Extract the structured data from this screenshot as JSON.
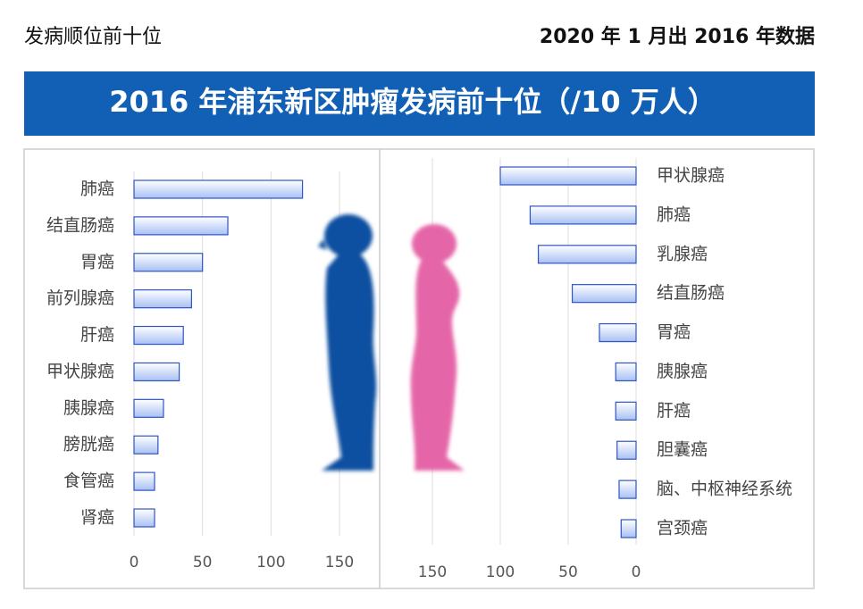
{
  "header": {
    "left": "发病顺位前十位",
    "right": "2020 年 1 月出 2016 年数据",
    "title": "2016 年浦东新区肿瘤发病前十位（/10 万人）"
  },
  "chart_data": [
    {
      "type": "bar",
      "orientation": "horizontal",
      "color": "#a8c0f4",
      "grid": true,
      "categories": [
        "肺癌",
        "结直肠癌",
        "胃癌",
        "前列腺癌",
        "肝癌",
        "甲状腺癌",
        "胰腺癌",
        "膀胱癌",
        "食管癌",
        "肾癌"
      ],
      "values": [
        123,
        68.5,
        50,
        42,
        36,
        33,
        21.5,
        17.5,
        15,
        15
      ],
      "xlim": [
        0,
        150
      ],
      "xticks": [
        0,
        50,
        100,
        150
      ]
    },
    {
      "type": "bar",
      "orientation": "horizontal",
      "color": "#a8c0f4",
      "grid": true,
      "categories": [
        "甲状腺癌",
        "肺癌",
        "乳腺癌",
        "结直肠癌",
        "胃癌",
        "胰腺癌",
        "肝癌",
        "胆囊癌",
        "脑、中枢神经系统",
        "宫颈癌"
      ],
      "values": [
        100,
        78,
        72,
        47,
        27,
        15,
        15,
        14,
        12.5,
        11
      ],
      "xlim": [
        150,
        0
      ],
      "xticks": [
        150,
        100,
        50,
        0
      ]
    }
  ]
}
